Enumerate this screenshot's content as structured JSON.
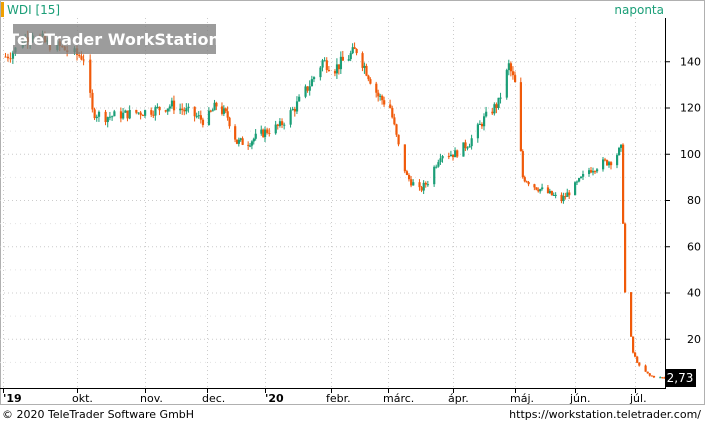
{
  "header": {
    "symbol_label": "WDI [15]",
    "interval_label": "naponta",
    "watermark": "TeleTrader WorkStation"
  },
  "footer": {
    "copyright": "© 2020 TeleTrader Software GmbH",
    "url": "https://workstation.teletrader.com/"
  },
  "last_price_label": "2,73",
  "colors": {
    "up": "#1a9e77",
    "down": "#f05a0a",
    "accent": "#f0a000",
    "axis": "#000000",
    "grid": "#cccccc"
  },
  "chart_data": {
    "type": "candlestick",
    "title": "",
    "xlabel": "",
    "ylabel": "",
    "ylim": [
      0,
      160
    ],
    "y_ticks": [
      20,
      40,
      60,
      80,
      100,
      120,
      140
    ],
    "x_ticks": [
      "'19",
      "okt.",
      "nov.",
      "dec.",
      "'20",
      "febr.",
      "márc.",
      "ápr.",
      "máj.",
      "jún.",
      "júl."
    ],
    "x_range": [
      "2019-09-01",
      "2020-07-31"
    ],
    "grid": true,
    "last_value": 2.73,
    "close_anchors": [
      [
        "2019-09-02",
        142
      ],
      [
        "2019-09-06",
        145
      ],
      [
        "2019-09-10",
        150
      ],
      [
        "2019-09-13",
        153
      ],
      [
        "2019-09-18",
        148
      ],
      [
        "2019-09-24",
        146
      ],
      [
        "2019-09-30",
        143
      ],
      [
        "2019-10-04",
        142
      ],
      [
        "2019-10-08",
        118
      ],
      [
        "2019-10-14",
        116
      ],
      [
        "2019-10-22",
        117
      ],
      [
        "2019-10-30",
        118
      ],
      [
        "2019-11-06",
        119
      ],
      [
        "2019-11-14",
        121
      ],
      [
        "2019-11-22",
        118
      ],
      [
        "2019-11-30",
        114
      ],
      [
        "2019-12-06",
        121
      ],
      [
        "2019-12-12",
        116
      ],
      [
        "2019-12-17",
        105
      ],
      [
        "2019-12-23",
        105
      ],
      [
        "2020-01-02",
        110
      ],
      [
        "2020-01-08",
        112
      ],
      [
        "2020-01-15",
        120
      ],
      [
        "2020-01-22",
        130
      ],
      [
        "2020-01-28",
        140
      ],
      [
        "2020-02-03",
        137
      ],
      [
        "2020-02-10",
        142
      ],
      [
        "2020-02-14",
        145
      ],
      [
        "2020-02-19",
        136
      ],
      [
        "2020-02-25",
        125
      ],
      [
        "2020-03-02",
        120
      ],
      [
        "2020-03-06",
        103
      ],
      [
        "2020-03-10",
        90
      ],
      [
        "2020-03-16",
        84
      ],
      [
        "2020-03-20",
        88
      ],
      [
        "2020-03-26",
        100
      ],
      [
        "2020-04-02",
        100
      ],
      [
        "2020-04-09",
        105
      ],
      [
        "2020-04-16",
        115
      ],
      [
        "2020-04-23",
        122
      ],
      [
        "2020-04-28",
        138
      ],
      [
        "2020-05-01",
        130
      ],
      [
        "2020-05-05",
        90
      ],
      [
        "2020-05-11",
        86
      ],
      [
        "2020-05-18",
        83
      ],
      [
        "2020-05-25",
        80
      ],
      [
        "2020-06-01",
        86
      ],
      [
        "2020-06-08",
        93
      ],
      [
        "2020-06-15",
        96
      ],
      [
        "2020-06-19",
        97
      ],
      [
        "2020-06-24",
        102
      ],
      [
        "2020-06-26",
        40
      ],
      [
        "2020-06-30",
        14
      ],
      [
        "2020-07-03",
        8
      ],
      [
        "2020-07-08",
        4
      ],
      [
        "2020-07-14",
        3
      ],
      [
        "2020-07-21",
        2.73
      ]
    ]
  }
}
